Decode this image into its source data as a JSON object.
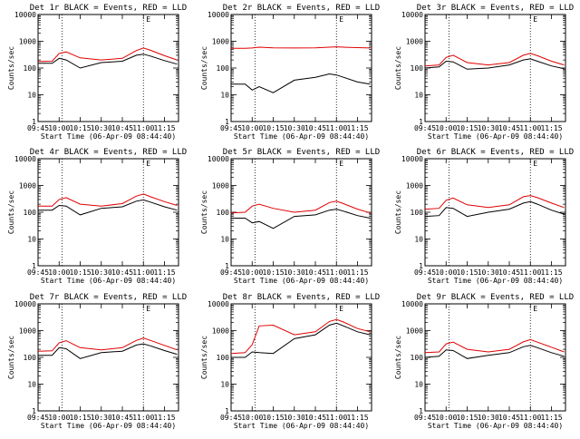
{
  "chart_data": [
    {
      "type": "line",
      "title": "Det 1r BLACK = Events, RED = LLD",
      "xlabel": "Start Time (06-Apr-09 08:44:40)",
      "ylabel": "Counts/sec",
      "yscale": "log",
      "ylim": [
        1,
        10000
      ],
      "xlim": [
        "09:45",
        "11:25"
      ],
      "x_ticks": [
        "09:45",
        "10:00",
        "10:15",
        "10:30",
        "10:45",
        "11:00",
        "11:15"
      ],
      "y_ticks": [
        "1",
        "10",
        "100",
        "1000",
        "10000"
      ],
      "marker_label": "E",
      "vlines": [
        "10:02",
        "11:00"
      ],
      "x": [
        "09:45",
        "09:55",
        "10:00",
        "10:05",
        "10:15",
        "10:30",
        "10:45",
        "10:55",
        "11:00",
        "11:05",
        "11:15",
        "11:24"
      ],
      "series": [
        {
          "name": "BLACK",
          "color": "#000000",
          "values": [
            150,
            150,
            230,
            200,
            100,
            160,
            180,
            300,
            330,
            280,
            190,
            140
          ]
        },
        {
          "name": "RED",
          "color": "#e00000",
          "values": [
            175,
            180,
            350,
            400,
            240,
            200,
            230,
            450,
            560,
            460,
            290,
            200
          ]
        }
      ]
    },
    {
      "type": "line",
      "title": "Det 2r BLACK = Events, RED = LLD",
      "xlabel": "Start Time (06-Apr-09 08:44:40)",
      "ylabel": "Counts/sec",
      "yscale": "log",
      "ylim": [
        1,
        10000
      ],
      "xlim": [
        "09:45",
        "11:25"
      ],
      "x_ticks": [
        "09:45",
        "10:00",
        "10:15",
        "10:30",
        "10:45",
        "11:00",
        "11:15"
      ],
      "y_ticks": [
        "1",
        "10",
        "100",
        "1000",
        "10000"
      ],
      "marker_label": "E",
      "vlines": [
        "10:02",
        "11:00"
      ],
      "x": [
        "09:45",
        "09:55",
        "10:00",
        "10:05",
        "10:15",
        "10:30",
        "10:45",
        "10:55",
        "11:00",
        "11:05",
        "11:15",
        "11:24"
      ],
      "series": [
        {
          "name": "BLACK",
          "color": "#000000",
          "values": [
            25,
            25,
            15,
            20,
            12,
            35,
            45,
            60,
            55,
            45,
            30,
            25
          ]
        },
        {
          "name": "RED",
          "color": "#e00000",
          "values": [
            550,
            550,
            560,
            600,
            570,
            560,
            570,
            600,
            620,
            600,
            580,
            560
          ]
        }
      ]
    },
    {
      "type": "line",
      "title": "Det 3r BLACK = Events, RED = LLD",
      "xlabel": "Start Time (06-Apr-09 08:44:40)",
      "ylabel": "Counts/sec",
      "yscale": "log",
      "ylim": [
        1,
        10000
      ],
      "xlim": [
        "09:45",
        "11:25"
      ],
      "x_ticks": [
        "09:45",
        "10:00",
        "10:15",
        "10:30",
        "10:45",
        "11:00",
        "11:15"
      ],
      "y_ticks": [
        "1",
        "10",
        "100",
        "1000",
        "10000"
      ],
      "marker_label": "E",
      "vlines": [
        "10:02",
        "11:00"
      ],
      "x": [
        "09:45",
        "09:55",
        "10:00",
        "10:05",
        "10:15",
        "10:30",
        "10:45",
        "10:55",
        "11:00",
        "11:05",
        "11:15",
        "11:24"
      ],
      "series": [
        {
          "name": "BLACK",
          "color": "#000000",
          "values": [
            100,
            110,
            180,
            170,
            90,
            100,
            130,
            200,
            220,
            180,
            120,
            95
          ]
        },
        {
          "name": "RED",
          "color": "#e00000",
          "values": [
            120,
            130,
            250,
            300,
            160,
            130,
            160,
            300,
            350,
            290,
            180,
            130
          ]
        }
      ]
    },
    {
      "type": "line",
      "title": "Det 4r BLACK = Events, RED = LLD",
      "xlabel": "Start Time (06-Apr-09 08:44:40)",
      "ylabel": "Counts/sec",
      "yscale": "log",
      "ylim": [
        1,
        10000
      ],
      "xlim": [
        "09:45",
        "11:25"
      ],
      "x_ticks": [
        "09:45",
        "10:00",
        "10:15",
        "10:30",
        "10:45",
        "11:00",
        "11:15"
      ],
      "y_ticks": [
        "1",
        "10",
        "100",
        "1000",
        "10000"
      ],
      "marker_label": "E",
      "vlines": [
        "10:02",
        "11:00"
      ],
      "x": [
        "09:45",
        "09:55",
        "10:00",
        "10:05",
        "10:15",
        "10:30",
        "10:45",
        "10:55",
        "11:00",
        "11:05",
        "11:15",
        "11:24"
      ],
      "series": [
        {
          "name": "BLACK",
          "color": "#000000",
          "values": [
            120,
            120,
            180,
            170,
            80,
            140,
            160,
            260,
            290,
            240,
            160,
            120
          ]
        },
        {
          "name": "RED",
          "color": "#e00000",
          "values": [
            170,
            170,
            300,
            350,
            200,
            170,
            210,
            400,
            480,
            380,
            250,
            180
          ]
        }
      ]
    },
    {
      "type": "line",
      "title": "Det 5r BLACK = Events, RED = LLD",
      "xlabel": "Start Time (06-Apr-09 08:44:40)",
      "ylabel": "Counts/sec",
      "yscale": "log",
      "ylim": [
        1,
        10000
      ],
      "xlim": [
        "09:45",
        "11:25"
      ],
      "x_ticks": [
        "09:45",
        "10:00",
        "10:15",
        "10:30",
        "10:45",
        "11:00",
        "11:15"
      ],
      "y_ticks": [
        "1",
        "10",
        "100",
        "1000",
        "10000"
      ],
      "marker_label": "E",
      "vlines": [
        "10:02",
        "11:00"
      ],
      "x": [
        "09:45",
        "09:55",
        "10:00",
        "10:05",
        "10:15",
        "10:30",
        "10:45",
        "10:55",
        "11:00",
        "11:05",
        "11:15",
        "11:24"
      ],
      "series": [
        {
          "name": "BLACK",
          "color": "#000000",
          "values": [
            60,
            60,
            40,
            45,
            25,
            70,
            80,
            120,
            130,
            110,
            75,
            60
          ]
        },
        {
          "name": "RED",
          "color": "#e00000",
          "values": [
            95,
            100,
            170,
            200,
            140,
            100,
            120,
            230,
            260,
            210,
            130,
            95
          ]
        }
      ]
    },
    {
      "type": "line",
      "title": "Det 6r BLACK = Events, RED = LLD",
      "xlabel": "Start Time (06-Apr-09 08:44:40)",
      "ylabel": "Counts/sec",
      "yscale": "log",
      "ylim": [
        1,
        10000
      ],
      "xlim": [
        "09:45",
        "11:25"
      ],
      "x_ticks": [
        "09:45",
        "10:00",
        "10:15",
        "10:30",
        "10:45",
        "11:00",
        "11:15"
      ],
      "y_ticks": [
        "1",
        "10",
        "100",
        "1000",
        "10000"
      ],
      "marker_label": "E",
      "vlines": [
        "10:02",
        "11:00"
      ],
      "x": [
        "09:45",
        "09:55",
        "10:00",
        "10:05",
        "10:15",
        "10:30",
        "10:45",
        "10:55",
        "11:00",
        "11:05",
        "11:15",
        "11:24"
      ],
      "series": [
        {
          "name": "BLACK",
          "color": "#000000",
          "values": [
            70,
            75,
            150,
            140,
            70,
            100,
            130,
            220,
            250,
            200,
            120,
            85
          ]
        },
        {
          "name": "RED",
          "color": "#e00000",
          "values": [
            130,
            140,
            280,
            340,
            190,
            150,
            190,
            380,
            420,
            350,
            220,
            150
          ]
        }
      ]
    },
    {
      "type": "line",
      "title": "Det 7r BLACK = Events, RED = LLD",
      "xlabel": "Start Time (06-Apr-09 08:44:40)",
      "ylabel": "Counts/sec",
      "yscale": "log",
      "ylim": [
        1,
        10000
      ],
      "xlim": [
        "09:45",
        "11:25"
      ],
      "x_ticks": [
        "09:45",
        "10:00",
        "10:15",
        "10:30",
        "10:45",
        "11:00",
        "11:15"
      ],
      "y_ticks": [
        "1",
        "10",
        "100",
        "1000",
        "10000"
      ],
      "marker_label": "E",
      "vlines": [
        "10:02",
        "11:00"
      ],
      "x": [
        "09:45",
        "09:55",
        "10:00",
        "10:05",
        "10:15",
        "10:30",
        "10:45",
        "10:55",
        "11:00",
        "11:05",
        "11:15",
        "11:24"
      ],
      "series": [
        {
          "name": "BLACK",
          "color": "#000000",
          "values": [
            120,
            120,
            230,
            210,
            90,
            150,
            170,
            290,
            320,
            270,
            180,
            130
          ]
        },
        {
          "name": "RED",
          "color": "#e00000",
          "values": [
            170,
            175,
            350,
            420,
            230,
            190,
            230,
            430,
            530,
            430,
            280,
            190
          ]
        }
      ]
    },
    {
      "type": "line",
      "title": "Det 8r BLACK = Events, RED = LLD",
      "xlabel": "Start Time (06-Apr-09 08:44:40)",
      "ylabel": "Counts/sec",
      "yscale": "log",
      "ylim": [
        1,
        10000
      ],
      "xlim": [
        "09:45",
        "11:25"
      ],
      "x_ticks": [
        "09:45",
        "10:00",
        "10:15",
        "10:30",
        "10:45",
        "11:00",
        "11:15"
      ],
      "y_ticks": [
        "1",
        "10",
        "100",
        "1000",
        "10000"
      ],
      "marker_label": "E",
      "vlines": [
        "10:02",
        "11:00"
      ],
      "x": [
        "09:45",
        "09:55",
        "10:00",
        "10:05",
        "10:15",
        "10:30",
        "10:45",
        "10:55",
        "11:00",
        "11:05",
        "11:15",
        "11:24"
      ],
      "series": [
        {
          "name": "BLACK",
          "color": "#000000",
          "values": [
            100,
            100,
            160,
            150,
            140,
            500,
            700,
            1600,
            1900,
            1500,
            900,
            700
          ]
        },
        {
          "name": "RED",
          "color": "#e00000",
          "values": [
            140,
            150,
            300,
            1500,
            1600,
            700,
            900,
            2200,
            2600,
            2100,
            1200,
            900
          ]
        }
      ]
    },
    {
      "type": "line",
      "title": "Det 9r BLACK = Events, RED = LLD",
      "xlabel": "Start Time (06-Apr-09 08:44:40)",
      "ylabel": "Counts/sec",
      "yscale": "log",
      "ylim": [
        1,
        10000
      ],
      "xlim": [
        "09:45",
        "11:25"
      ],
      "x_ticks": [
        "09:45",
        "10:00",
        "10:15",
        "10:30",
        "10:45",
        "11:00",
        "11:15"
      ],
      "y_ticks": [
        "1",
        "10",
        "100",
        "1000",
        "10000"
      ],
      "marker_label": "E",
      "vlines": [
        "10:02",
        "11:00"
      ],
      "x": [
        "09:45",
        "09:55",
        "10:00",
        "10:05",
        "10:15",
        "10:30",
        "10:45",
        "10:55",
        "11:00",
        "11:05",
        "11:15",
        "11:24"
      ],
      "series": [
        {
          "name": "BLACK",
          "color": "#000000",
          "values": [
            100,
            110,
            190,
            180,
            90,
            120,
            150,
            250,
            280,
            230,
            150,
            110
          ]
        },
        {
          "name": "RED",
          "color": "#e00000",
          "values": [
            150,
            160,
            320,
            370,
            200,
            160,
            200,
            380,
            460,
            370,
            240,
            160
          ]
        }
      ]
    }
  ]
}
